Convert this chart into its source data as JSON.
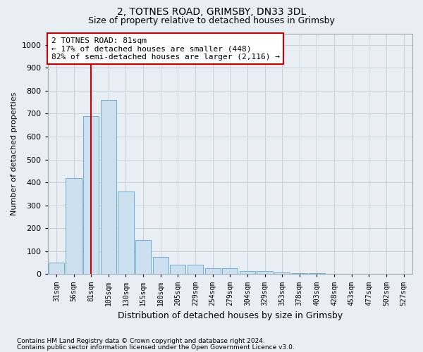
{
  "title1": "2, TOTNES ROAD, GRIMSBY, DN33 3DL",
  "title2": "Size of property relative to detached houses in Grimsby",
  "xlabel": "Distribution of detached houses by size in Grimsby",
  "ylabel": "Number of detached properties",
  "categories": [
    "31sqm",
    "56sqm",
    "81sqm",
    "105sqm",
    "130sqm",
    "155sqm",
    "180sqm",
    "205sqm",
    "229sqm",
    "254sqm",
    "279sqm",
    "304sqm",
    "329sqm",
    "353sqm",
    "378sqm",
    "403sqm",
    "428sqm",
    "453sqm",
    "477sqm",
    "502sqm",
    "527sqm"
  ],
  "values": [
    50,
    420,
    690,
    760,
    360,
    150,
    75,
    40,
    40,
    25,
    25,
    15,
    12,
    8,
    5,
    3,
    2,
    1,
    1,
    1,
    1
  ],
  "bar_color": "#cce0f0",
  "bar_edge_color": "#6aaed6",
  "vline_x": 2,
  "vline_color": "#cc0000",
  "annotation_line1": "2 TOTNES ROAD: 81sqm",
  "annotation_line2": "← 17% of detached houses are smaller (448)",
  "annotation_line3": "82% of semi-detached houses are larger (2,116) →",
  "annotation_box_color": "#cc0000",
  "annotation_bg": "white",
  "ylim": [
    0,
    1050
  ],
  "yticks": [
    0,
    100,
    200,
    300,
    400,
    500,
    600,
    700,
    800,
    900,
    1000
  ],
  "grid_color": "#c8d0d8",
  "footer1": "Contains HM Land Registry data © Crown copyright and database right 2024.",
  "footer2": "Contains public sector information licensed under the Open Government Licence v3.0.",
  "bg_color": "#e8eef4"
}
